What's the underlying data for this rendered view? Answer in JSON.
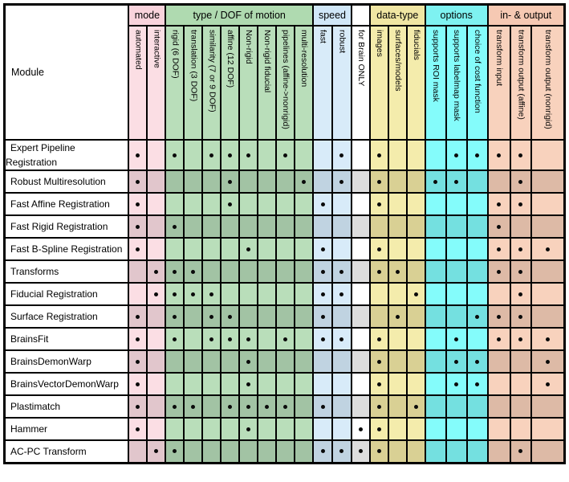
{
  "table": {
    "corner_label": "Module",
    "groups": [
      {
        "name": "mode",
        "label": "mode",
        "colors": {
          "header": "#f9d3dc",
          "light": "#fbdee4",
          "dark": "#e1c6cc"
        },
        "columns": [
          "automated",
          "interactive"
        ]
      },
      {
        "name": "motion",
        "label": "type / DOF of motion",
        "colors": {
          "header": "#afdab0",
          "light": "#b9deba",
          "dark": "#a2c3a4"
        },
        "columns": [
          "rigid (6 DOF)",
          "translation (3 DOF)",
          "similarity (7 or 9 DOF)",
          "affine (12 DOF)",
          "Non-rigid",
          "Non-rigid fiducial",
          "pipelines (affine->nonrigid)",
          "multi-resolution"
        ]
      },
      {
        "name": "speed",
        "label": "speed",
        "colors": {
          "header": "#d0e7f8",
          "light": "#d8ebf9",
          "dark": "#c0d3e1"
        },
        "columns": [
          "fast",
          "robust"
        ]
      },
      {
        "name": "brain",
        "label": "",
        "colors": {
          "header": "#ffffff",
          "light": "#ffffff",
          "dark": "#dddddd"
        },
        "columns": [
          "for Brain ONLY"
        ]
      },
      {
        "name": "datatype",
        "label": "data-type",
        "colors": {
          "header": "#f0e6a3",
          "light": "#f4ecac",
          "dark": "#d9d094"
        },
        "columns": [
          "images",
          "surfaces/models",
          "fiducials"
        ]
      },
      {
        "name": "options",
        "label": "options",
        "colors": {
          "header": "#7ef2f1",
          "light": "#84fcfb",
          "dark": "#74e0e0"
        },
        "columns": [
          "supports ROI mask",
          "supports labelmap mask",
          "choice of cost function"
        ]
      },
      {
        "name": "inout",
        "label": "in- & output",
        "colors": {
          "header": "#f6c9b3",
          "light": "#f8d2bd",
          "dark": "#ddbaa6"
        },
        "columns": [
          "transform input",
          "transform output (affine)",
          "transform output (nonrigid)"
        ]
      }
    ],
    "rows": [
      {
        "module": "Expert Pipeline Registration",
        "dots": [
          1,
          0,
          1,
          0,
          1,
          1,
          1,
          0,
          1,
          0,
          0,
          1,
          0,
          1,
          0,
          0,
          0,
          1,
          1,
          1,
          1,
          0
        ]
      },
      {
        "module": "Robust Multiresolution",
        "dots": [
          1,
          0,
          0,
          0,
          0,
          1,
          0,
          0,
          0,
          1,
          0,
          1,
          0,
          1,
          0,
          0,
          1,
          1,
          0,
          0,
          1,
          0
        ]
      },
      {
        "module": "Fast Affine Registration",
        "dots": [
          1,
          0,
          0,
          0,
          0,
          1,
          0,
          0,
          0,
          0,
          1,
          0,
          0,
          1,
          0,
          0,
          0,
          0,
          0,
          1,
          1,
          0
        ]
      },
      {
        "module": "Fast Rigid Registration",
        "dots": [
          1,
          0,
          1,
          0,
          0,
          0,
          0,
          0,
          0,
          0,
          0,
          0,
          0,
          0,
          0,
          0,
          0,
          0,
          0,
          1,
          0,
          0
        ]
      },
      {
        "module": "Fast B-Spline Registration",
        "dots": [
          1,
          0,
          0,
          0,
          0,
          0,
          1,
          0,
          0,
          0,
          1,
          0,
          0,
          1,
          0,
          0,
          0,
          0,
          0,
          1,
          1,
          1
        ]
      },
      {
        "module": "Transforms",
        "dots": [
          0,
          1,
          1,
          1,
          0,
          0,
          0,
          0,
          0,
          0,
          1,
          1,
          0,
          1,
          1,
          0,
          0,
          0,
          0,
          1,
          1,
          0
        ]
      },
      {
        "module": "Fiducial Registration",
        "dots": [
          0,
          1,
          1,
          1,
          1,
          0,
          0,
          0,
          0,
          0,
          1,
          1,
          0,
          0,
          0,
          1,
          0,
          0,
          0,
          0,
          1,
          0
        ]
      },
      {
        "module": "Surface Registration",
        "dots": [
          1,
          0,
          1,
          0,
          1,
          1,
          0,
          0,
          0,
          0,
          1,
          0,
          0,
          0,
          1,
          0,
          0,
          0,
          1,
          1,
          1,
          0
        ]
      },
      {
        "module": "BrainsFit",
        "dots": [
          1,
          0,
          1,
          0,
          1,
          1,
          1,
          0,
          1,
          0,
          1,
          1,
          0,
          1,
          0,
          0,
          0,
          1,
          0,
          1,
          1,
          1
        ]
      },
      {
        "module": "BrainsDemonWarp",
        "dots": [
          1,
          0,
          0,
          0,
          0,
          0,
          1,
          0,
          0,
          0,
          0,
          0,
          0,
          1,
          0,
          0,
          0,
          1,
          1,
          0,
          0,
          1
        ]
      },
      {
        "module": "BrainsVectorDemonWarp",
        "dots": [
          1,
          0,
          0,
          0,
          0,
          0,
          1,
          0,
          0,
          0,
          0,
          0,
          0,
          1,
          0,
          0,
          0,
          1,
          1,
          0,
          0,
          1
        ]
      },
      {
        "module": "Plastimatch",
        "dots": [
          1,
          0,
          1,
          1,
          0,
          1,
          1,
          1,
          1,
          0,
          1,
          0,
          0,
          1,
          0,
          1,
          0,
          0,
          0,
          0,
          0,
          0
        ]
      },
      {
        "module": "Hammer",
        "dots": [
          1,
          0,
          0,
          0,
          0,
          0,
          1,
          0,
          0,
          0,
          0,
          0,
          1,
          1,
          0,
          0,
          0,
          0,
          0,
          0,
          0,
          0
        ]
      },
      {
        "module": "AC-PC Transform",
        "dots": [
          0,
          1,
          1,
          0,
          0,
          0,
          0,
          0,
          0,
          0,
          1,
          1,
          1,
          1,
          0,
          0,
          0,
          0,
          0,
          0,
          1,
          0
        ]
      }
    ]
  }
}
